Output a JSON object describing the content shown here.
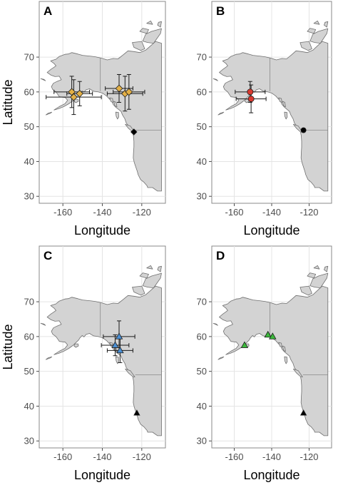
{
  "chart_data": [
    {
      "type": "scatter",
      "panel": "A",
      "xlabel": "Longitude",
      "ylabel": "Latitude",
      "xlim": [
        -172,
        -108
      ],
      "ylim": [
        28,
        86
      ],
      "x_ticks": [
        -160,
        -140,
        -120
      ],
      "y_ticks": [
        30,
        40,
        50,
        60,
        70
      ],
      "x_tick_labels": [
        "-160",
        "-140",
        "-120"
      ],
      "y_tick_labels": [
        "30",
        "40",
        "50",
        "60",
        "70"
      ],
      "marker": "diamond",
      "color": "#e3b046",
      "points": [
        {
          "x": -155.5,
          "y": 60.0,
          "xerr": 9.0,
          "yerr": 4.5
        },
        {
          "x": -154.5,
          "y": 58.5,
          "xerr": 14.0,
          "yerr": 5.0
        },
        {
          "x": -151.5,
          "y": 59.5,
          "xerr": 6.5,
          "yerr": 3.5
        },
        {
          "x": -131.5,
          "y": 61.0,
          "xerr": 7.0,
          "yerr": 4.0
        },
        {
          "x": -128.5,
          "y": 59.5,
          "xerr": 9.0,
          "yerr": 5.0
        },
        {
          "x": -126.5,
          "y": 60.0,
          "xerr": 8.0,
          "yerr": 5.0
        }
      ],
      "reference": {
        "x": -124.0,
        "y": 48.5,
        "marker": "diamond"
      }
    },
    {
      "type": "scatter",
      "panel": "B",
      "xlabel": "Longitude",
      "ylabel": "",
      "xlim": [
        -172,
        -108
      ],
      "ylim": [
        28,
        86
      ],
      "x_ticks": [
        -160,
        -140,
        -120
      ],
      "y_ticks": [
        30,
        40,
        50,
        60,
        70
      ],
      "x_tick_labels": [
        "-160",
        "-140",
        "-120"
      ],
      "y_tick_labels": [
        "30",
        "40",
        "50",
        "60",
        "70"
      ],
      "marker": "circle",
      "color": "#d93a30",
      "points": [
        {
          "x": -151.5,
          "y": 60.0,
          "xerr": 8.0,
          "yerr": 3.0
        },
        {
          "x": -151.0,
          "y": 58.0,
          "xerr": 8.0,
          "yerr": 4.0
        }
      ],
      "reference": {
        "x": -123.0,
        "y": 49.0,
        "marker": "circle"
      }
    },
    {
      "type": "scatter",
      "panel": "C",
      "xlabel": "Longitude",
      "ylabel": "Latitude",
      "xlim": [
        -172,
        -108
      ],
      "ylim": [
        28,
        86
      ],
      "x_ticks": [
        -160,
        -140,
        -120
      ],
      "y_ticks": [
        30,
        40,
        50,
        60,
        70
      ],
      "x_tick_labels": [
        "-160",
        "-140",
        "-120"
      ],
      "y_tick_labels": [
        "30",
        "40",
        "50",
        "60",
        "70"
      ],
      "marker": "triangle",
      "color": "#4a8fd4",
      "points": [
        {
          "x": -131.5,
          "y": 60.0,
          "xerr": 8.0,
          "yerr": 4.5
        },
        {
          "x": -133.5,
          "y": 57.5,
          "xerr": 7.0,
          "yerr": 3.0
        },
        {
          "x": -131.0,
          "y": 56.0,
          "xerr": 6.5,
          "yerr": 3.5
        }
      ],
      "reference": {
        "x": -122.5,
        "y": 38.0,
        "marker": "triangle"
      }
    },
    {
      "type": "scatter",
      "panel": "D",
      "xlabel": "Longitude",
      "ylabel": "",
      "xlim": [
        -172,
        -108
      ],
      "ylim": [
        28,
        86
      ],
      "x_ticks": [
        -160,
        -140,
        -120
      ],
      "y_ticks": [
        30,
        40,
        50,
        60,
        70
      ],
      "x_tick_labels": [
        "-160",
        "-140",
        "-120"
      ],
      "y_tick_labels": [
        "30",
        "40",
        "50",
        "60",
        "70"
      ],
      "marker": "triangle",
      "color": "#3cb93c",
      "points": [
        {
          "x": -154.5,
          "y": 57.5
        },
        {
          "x": -142.0,
          "y": 60.5
        },
        {
          "x": -139.5,
          "y": 60.0
        }
      ],
      "reference": {
        "x": -123.0,
        "y": 38.0,
        "marker": "triangle"
      }
    }
  ],
  "colors": {
    "land": "#d3d3d3",
    "coast": "#6f6f6f",
    "reference_marker": "#000000"
  }
}
